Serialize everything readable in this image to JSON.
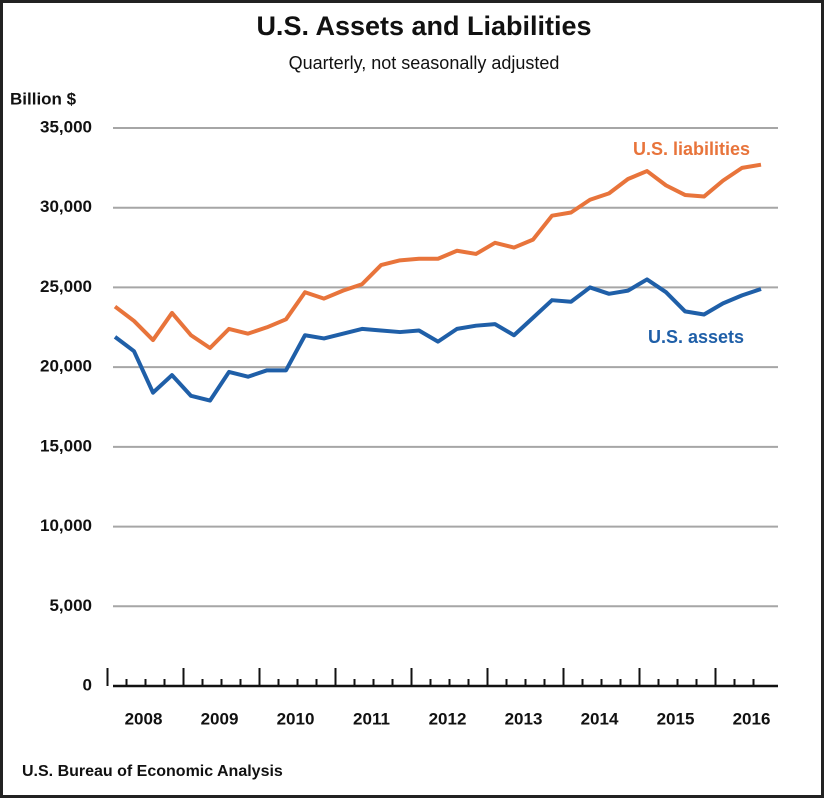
{
  "chart_data": {
    "type": "line",
    "title": "U.S. Assets and Liabilities",
    "subtitle": "Quarterly, not seasonally adjusted",
    "y_label": "Billion $",
    "source": "U.S. Bureau of Economic Analysis",
    "categories": [
      "2008",
      null,
      null,
      null,
      "2009",
      null,
      null,
      null,
      "2010",
      null,
      null,
      null,
      "2011",
      null,
      null,
      null,
      "2012",
      null,
      null,
      null,
      "2013",
      null,
      null,
      null,
      "2014",
      null,
      null,
      null,
      "2015",
      null,
      null,
      null,
      "2016",
      null,
      null
    ],
    "series": [
      {
        "name": "U.S. liabilities",
        "color": "#e8743b",
        "values": [
          23800,
          22900,
          21700,
          23400,
          22000,
          21200,
          22400,
          22100,
          22500,
          23000,
          24700,
          24300,
          24800,
          25200,
          26400,
          26700,
          26800,
          26800,
          27300,
          27100,
          27800,
          27500,
          28000,
          29500,
          29700,
          30500,
          30900,
          31800,
          32300,
          31400,
          30800,
          30700,
          31700,
          32500,
          32700
        ]
      },
      {
        "name": "U.S. assets",
        "color": "#1f5fa8",
        "values": [
          21900,
          21000,
          18400,
          19500,
          18200,
          17900,
          19700,
          19400,
          19800,
          19800,
          22000,
          21800,
          22100,
          22400,
          22300,
          22200,
          22300,
          21600,
          22400,
          22600,
          22700,
          22000,
          23100,
          24200,
          24100,
          25000,
          24600,
          24800,
          25500,
          24700,
          23500,
          23300,
          24000,
          24500,
          24900
        ]
      }
    ],
    "ylim": [
      0,
      35000
    ],
    "yticks": [
      0,
      {
        "value": 5000,
        "label": "5,000"
      },
      {
        "value": 10000,
        "label": "10,000"
      },
      {
        "value": 15000,
        "label": "15,000"
      },
      {
        "value": 20000,
        "label": "20,000"
      },
      {
        "value": 25000,
        "label": "25,000"
      },
      {
        "value": 30000,
        "label": "30,000"
      },
      {
        "value": 35000,
        "label": "35,000"
      }
    ],
    "grid": true
  }
}
